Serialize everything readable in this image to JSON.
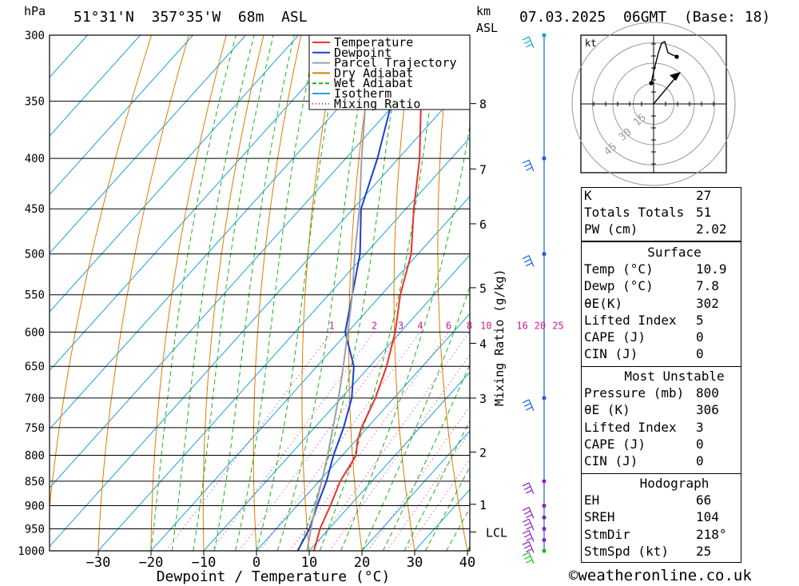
{
  "header": {
    "units_hpa": "hPa",
    "location": "51°31'N  357°35'W  68m  ASL",
    "units_km": "km",
    "units_asl": "ASL",
    "datetime": "07.03.2025  06GMT  (Base: 18)"
  },
  "chart_data": {
    "type": "line",
    "title": "",
    "xlabel": "Dewpoint / Temperature (°C)",
    "ylabel": "hPa",
    "y2label": "Mixing Ratio (g/kg)",
    "x_ticks": [
      -30,
      -20,
      -10,
      0,
      10,
      20,
      30,
      40
    ],
    "y_ticks": [
      300,
      350,
      400,
      450,
      500,
      550,
      600,
      650,
      700,
      750,
      800,
      850,
      900,
      950,
      1000
    ],
    "km_ticks": [
      {
        "km": "8",
        "p": 352
      },
      {
        "km": "7",
        "p": 410
      },
      {
        "km": "6",
        "p": 466
      },
      {
        "km": "5",
        "p": 541
      },
      {
        "km": "4",
        "p": 616
      },
      {
        "km": "3",
        "p": 700
      },
      {
        "km": "2",
        "p": 794
      },
      {
        "km": "1",
        "p": 897
      },
      {
        "km": "LCL",
        "p": 957
      }
    ],
    "mixing_ratio_labels": [
      "1",
      "2",
      "3",
      "4",
      "6",
      "8",
      "10",
      "16",
      "20",
      "25"
    ],
    "legend": {
      "placement": "top-right",
      "entries": [
        {
          "name": "Temperature",
          "color": "#e8322c",
          "style": "solid"
        },
        {
          "name": "Dewpoint",
          "color": "#1a3fcf",
          "style": "solid"
        },
        {
          "name": "Parcel Trajectory",
          "color": "#a0a0a0",
          "style": "solid"
        },
        {
          "name": "Dry Adiabat",
          "color": "#e07b00",
          "style": "solid"
        },
        {
          "name": "Wet Adiabat",
          "color": "#1bb21b",
          "style": "dashed"
        },
        {
          "name": "Isotherm",
          "color": "#1aa0e0",
          "style": "solid"
        },
        {
          "name": "Mixing Ratio",
          "color": "#d01890",
          "style": "dotted"
        }
      ]
    },
    "series": [
      {
        "name": "Temperature",
        "color": "#e8322c",
        "points": [
          [
            1000,
            10.9
          ],
          [
            950,
            8.3
          ],
          [
            900,
            6.3
          ],
          [
            850,
            4.0
          ],
          [
            800,
            2.6
          ],
          [
            775,
            0.5
          ],
          [
            750,
            -1.1
          ],
          [
            700,
            -3.5
          ],
          [
            650,
            -6.8
          ],
          [
            600,
            -11.0
          ],
          [
            550,
            -16.4
          ],
          [
            500,
            -21.3
          ],
          [
            450,
            -28.5
          ],
          [
            400,
            -36.0
          ],
          [
            350,
            -45.5
          ],
          [
            300,
            -53.5
          ]
        ]
      },
      {
        "name": "Dewpoint",
        "color": "#1a3fcf",
        "points": [
          [
            1000,
            7.8
          ],
          [
            950,
            6.3
          ],
          [
            900,
            3.8
          ],
          [
            850,
            1.4
          ],
          [
            800,
            -1.7
          ],
          [
            750,
            -4.5
          ],
          [
            700,
            -8.0
          ],
          [
            650,
            -13.0
          ],
          [
            600,
            -20.5
          ],
          [
            550,
            -25.5
          ],
          [
            500,
            -31.0
          ],
          [
            450,
            -38.5
          ],
          [
            400,
            -44.0
          ],
          [
            350,
            -51.0
          ],
          [
            300,
            -65.0
          ]
        ]
      },
      {
        "name": "Parcel Trajectory",
        "color": "#a0a0a0",
        "points": [
          [
            1000,
            9.6
          ],
          [
            957,
            7.0
          ],
          [
            900,
            3.5
          ],
          [
            850,
            0.5
          ],
          [
            800,
            -2.8
          ],
          [
            750,
            -6.5
          ],
          [
            700,
            -10.5
          ],
          [
            650,
            -15.0
          ],
          [
            600,
            -20.0
          ],
          [
            550,
            -25.5
          ],
          [
            500,
            -32.0
          ],
          [
            450,
            -38.8
          ],
          [
            400,
            -47.0
          ],
          [
            350,
            -56.0
          ],
          [
            300,
            -66.5
          ]
        ]
      }
    ],
    "wind_barbs": [
      {
        "p": 300,
        "color": "#18a0d8"
      },
      {
        "p": 400,
        "color": "#2060d8"
      },
      {
        "p": 500,
        "color": "#2060d8"
      },
      {
        "p": 700,
        "color": "#2060d8"
      },
      {
        "p": 850,
        "color": "#9020c0"
      },
      {
        "p": 900,
        "color": "#9020c0"
      },
      {
        "p": 925,
        "color": "#9020c0"
      },
      {
        "p": 950,
        "color": "#9020c0"
      },
      {
        "p": 975,
        "color": "#9020c0"
      },
      {
        "p": 1000,
        "color": "#18c018"
      }
    ],
    "hodograph": {
      "units": "kt",
      "rings_kt": [
        15,
        30,
        45
      ],
      "ring_labels": [
        "15",
        "30",
        "45"
      ]
    }
  },
  "indices": {
    "k_label": "K",
    "k_value": "27",
    "tt_label": "Totals Totals",
    "tt_value": "51",
    "pw_label": "PW (cm)",
    "pw_value": "2.02"
  },
  "surface": {
    "title": "Surface",
    "temp_label": "Temp (°C)",
    "temp_value": "10.9",
    "dewp_label": "Dewp (°C)",
    "dewp_value": "7.8",
    "thetae_label": "θE(K)",
    "thetae_value": "302",
    "li_label": "Lifted Index",
    "li_value": "5",
    "cape_label": "CAPE (J)",
    "cape_value": "0",
    "cin_label": "CIN (J)",
    "cin_value": "0"
  },
  "most_unstable": {
    "title": "Most Unstable",
    "pressure_label": "Pressure (mb)",
    "pressure_value": "800",
    "thetae_label": "θE (K)",
    "thetae_value": "306",
    "li_label": "Lifted Index",
    "li_value": "3",
    "cape_label": "CAPE (J)",
    "cape_value": "0",
    "cin_label": "CIN (J)",
    "cin_value": "0"
  },
  "hodograph_table": {
    "title": "Hodograph",
    "eh_label": "EH",
    "eh_value": "66",
    "sreh_label": "SREH",
    "sreh_value": "104",
    "stmdir_label": "StmDir",
    "stmdir_value": "218°",
    "stmspd_label": "StmSpd (kt)",
    "stmspd_value": "25"
  },
  "footer": {
    "copyright_symbol": "©",
    "site": "weatheronline.co.uk"
  }
}
